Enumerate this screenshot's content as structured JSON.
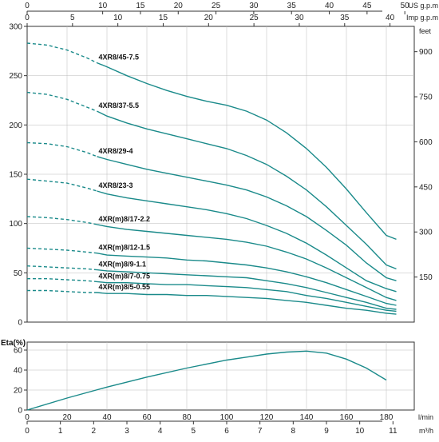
{
  "chart_data": [
    {
      "type": "line",
      "colors": {
        "curve": "#1a8a8a",
        "frame": "#333333",
        "grid": "#bbbbbb"
      },
      "x_lmin_ticks": [
        "0",
        "20",
        "40",
        "60",
        "80",
        "100",
        "120",
        "140",
        "160",
        "180"
      ],
      "x_m3h_ticks": [
        "0",
        "1",
        "2",
        "3",
        "4",
        "5",
        "6",
        "7",
        "8",
        "9",
        "10",
        "11"
      ],
      "x_m3h_unit": "m³/h",
      "x_lmin_unit": "l/min",
      "top_us_ticks": [
        "0",
        "10",
        "15",
        "20",
        "25",
        "30",
        "35",
        "40",
        "45",
        "50"
      ],
      "top_us_unit": "US g.p.m",
      "top_imp_ticks": [
        "0",
        "5",
        "10",
        "15",
        "20",
        "25",
        "30",
        "35",
        "40"
      ],
      "top_imp_unit": "Imp g.p.m",
      "y_left_ticks": [
        "0",
        "50",
        "100",
        "150",
        "200",
        "250",
        "300"
      ],
      "y_right_ticks": [
        "150",
        "300",
        "450",
        "600",
        "750",
        "900"
      ],
      "y_right_unit": "feet",
      "xlim": [
        0,
        194
      ],
      "ylim": [
        0,
        300
      ],
      "series": [
        {
          "name": "4XR8/45-7.5",
          "x": [
            0,
            10,
            20,
            30,
            35,
            40,
            50,
            60,
            70,
            80,
            90,
            100,
            110,
            120,
            130,
            140,
            150,
            160,
            170,
            180,
            185
          ],
          "y": [
            283,
            281,
            276,
            268,
            263,
            259,
            250,
            242,
            235,
            229,
            224,
            220,
            214,
            205,
            192,
            176,
            157,
            135,
            111,
            88,
            84
          ]
        },
        {
          "name": "4XR8/37-5.5",
          "x": [
            0,
            10,
            20,
            30,
            35,
            40,
            50,
            60,
            70,
            80,
            90,
            100,
            110,
            120,
            130,
            140,
            150,
            160,
            170,
            180,
            185
          ],
          "y": [
            233,
            231,
            226,
            218,
            214,
            209,
            202,
            196,
            191,
            186,
            181,
            176,
            169,
            160,
            148,
            134,
            117,
            98,
            79,
            58,
            54
          ]
        },
        {
          "name": "4XR8/29-4",
          "x": [
            0,
            10,
            20,
            30,
            35,
            40,
            50,
            60,
            70,
            80,
            90,
            100,
            110,
            120,
            130,
            140,
            150,
            160,
            170,
            180,
            185
          ],
          "y": [
            182,
            181,
            178,
            172,
            168,
            165,
            160,
            155,
            151,
            147,
            143,
            139,
            134,
            127,
            118,
            107,
            93,
            78,
            60,
            45,
            42
          ]
        },
        {
          "name": "4XR8/23-3",
          "x": [
            0,
            10,
            20,
            30,
            35,
            40,
            50,
            60,
            70,
            80,
            90,
            100,
            110,
            120,
            130,
            140,
            150,
            160,
            170,
            180,
            185
          ],
          "y": [
            145,
            143,
            141,
            136,
            133,
            130,
            126,
            123,
            120,
            117,
            114,
            110,
            105,
            98,
            90,
            80,
            68,
            55,
            42,
            34,
            31
          ]
        },
        {
          "name": "4XR(m)8/17-2.2",
          "x": [
            0,
            10,
            20,
            30,
            35,
            40,
            50,
            60,
            70,
            80,
            90,
            100,
            110,
            120,
            130,
            140,
            150,
            160,
            170,
            180,
            185
          ],
          "y": [
            107,
            106,
            104,
            101,
            99,
            97,
            94,
            92,
            90,
            88,
            86,
            84,
            81,
            77,
            71,
            64,
            55,
            45,
            35,
            25,
            22
          ]
        },
        {
          "name": "4XR(m)8/12-1.5",
          "x": [
            0,
            10,
            20,
            30,
            35,
            40,
            50,
            60,
            70,
            80,
            90,
            100,
            110,
            120,
            130,
            140,
            150,
            160,
            170,
            180,
            185
          ],
          "y": [
            75,
            74,
            73,
            71,
            70,
            68,
            67,
            66,
            65,
            63,
            62,
            60,
            58,
            55,
            51,
            46,
            40,
            33,
            26,
            19,
            17
          ]
        },
        {
          "name": "4XR(m)8/9-1.1",
          "x": [
            0,
            10,
            20,
            30,
            35,
            40,
            50,
            60,
            70,
            80,
            90,
            100,
            110,
            120,
            130,
            140,
            150,
            160,
            170,
            180,
            185
          ],
          "y": [
            57,
            56,
            55,
            54,
            53,
            52,
            51,
            50,
            49,
            48,
            47,
            46,
            45,
            42,
            39,
            35,
            30,
            25,
            20,
            14,
            13
          ]
        },
        {
          "name": "4XR(m)8/7-0.75",
          "x": [
            0,
            10,
            20,
            30,
            35,
            40,
            50,
            60,
            70,
            80,
            90,
            100,
            110,
            120,
            130,
            140,
            150,
            160,
            170,
            180,
            185
          ],
          "y": [
            44,
            44,
            43,
            42,
            41,
            40,
            40,
            39,
            38,
            38,
            37,
            36,
            35,
            33,
            31,
            27,
            24,
            20,
            16,
            12,
            11
          ]
        },
        {
          "name": "4XR(m)8/5-0.55",
          "x": [
            0,
            10,
            20,
            30,
            35,
            40,
            50,
            60,
            70,
            80,
            90,
            100,
            110,
            120,
            130,
            140,
            150,
            160,
            170,
            180,
            185
          ],
          "y": [
            32,
            32,
            31,
            30,
            30,
            29,
            29,
            28,
            28,
            27,
            27,
            26,
            25,
            24,
            22,
            20,
            17,
            14,
            12,
            9,
            8
          ]
        }
      ],
      "dashed_until_x": 35
    },
    {
      "type": "line",
      "ylabel": "Eta(%)",
      "y_ticks": [
        "0",
        "20",
        "40",
        "60"
      ],
      "xlim": [
        0,
        194
      ],
      "ylim": [
        0,
        68
      ],
      "series": [
        {
          "x": [
            0,
            20,
            40,
            60,
            80,
            100,
            110,
            120,
            130,
            140,
            150,
            160,
            170,
            180
          ],
          "y": [
            0,
            12,
            23,
            33,
            42,
            50,
            53,
            56,
            58,
            59,
            57,
            51,
            42,
            30
          ]
        }
      ]
    }
  ]
}
